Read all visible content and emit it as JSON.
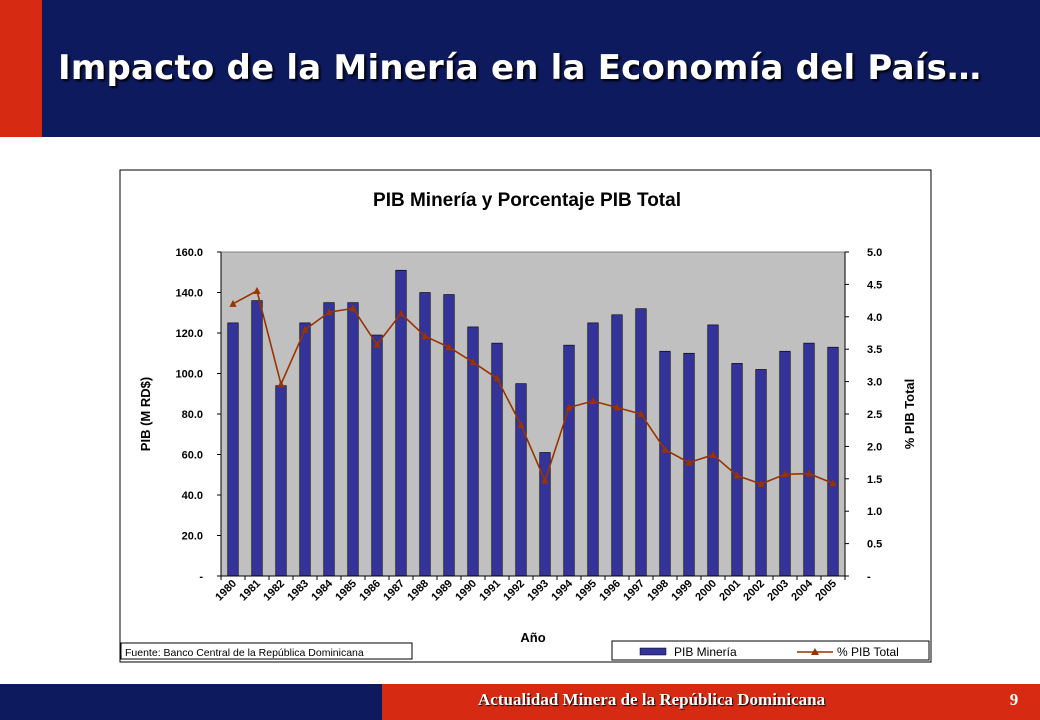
{
  "slide": {
    "title": "Impacto de la Minería en la Economía del País…",
    "footer": "Actualidad Minera de la República Dominicana",
    "page_number": "9"
  },
  "colors": {
    "band_dark": "#0e1a5e",
    "band_red": "#d62a12",
    "bar_fill": "#333399",
    "line_color": "#993300",
    "plot_background": "#c0c0c0"
  },
  "chart_data": {
    "type": "bar",
    "title": "PIB Minería y Porcentaje PIB Total",
    "xlabel": "Año",
    "ylabel": "PIB (M RD$)",
    "y2label": "% PIB Total",
    "source": "Fuente: Banco Central de la República Dominicana",
    "categories": [
      "1980",
      "1981",
      "1982",
      "1983",
      "1984",
      "1985",
      "1986",
      "1987",
      "1988",
      "1989",
      "1990",
      "1991",
      "1992",
      "1993",
      "1994",
      "1995",
      "1996",
      "1997",
      "1998",
      "1999",
      "2000",
      "2001",
      "2002",
      "2003",
      "2004",
      "2005"
    ],
    "y_ticks": [
      "-",
      "20.0",
      "40.0",
      "60.0",
      "80.0",
      "100.0",
      "120.0",
      "140.0",
      "160.0"
    ],
    "y2_ticks": [
      "-",
      "0.5",
      "1.0",
      "1.5",
      "2.0",
      "2.5",
      "3.0",
      "3.5",
      "4.0",
      "4.5",
      "5.0"
    ],
    "ylim": [
      0,
      160
    ],
    "y2lim": [
      0,
      5
    ],
    "legend_position": "bottom-right",
    "series": [
      {
        "name": "PIB Minería",
        "type": "bar",
        "axis": "left",
        "values": [
          125,
          136,
          94,
          125,
          135,
          135,
          119,
          151,
          140,
          139,
          123,
          115,
          95,
          61,
          114,
          125,
          129,
          132,
          111,
          110,
          124,
          105,
          102,
          111,
          115,
          113
        ]
      },
      {
        "name": "% PIB Total",
        "type": "line",
        "axis": "right",
        "values": [
          4.2,
          4.4,
          2.96,
          3.8,
          4.07,
          4.13,
          3.57,
          4.05,
          3.7,
          3.53,
          3.3,
          3.05,
          2.33,
          1.47,
          2.6,
          2.7,
          2.6,
          2.5,
          1.95,
          1.75,
          1.87,
          1.55,
          1.42,
          1.57,
          1.58,
          1.43
        ]
      }
    ]
  }
}
